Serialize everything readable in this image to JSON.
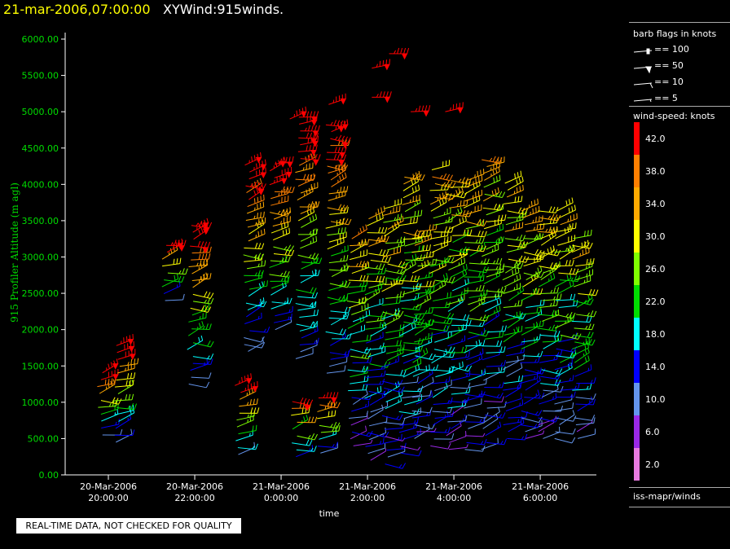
{
  "header": {
    "time": "21-mar-2006,07:00:00",
    "title": "XYWind:915winds."
  },
  "quality_note": "REAL-TIME DATA, NOT CHECKED FOR QUALITY",
  "legend": {
    "barb_title": "barb flags in knots",
    "barbs": [
      "== 100",
      "== 50",
      "== 10",
      "== 5"
    ],
    "speed_title": "wind-speed: knots",
    "speed_bins": [
      {
        "label": "42.0",
        "color": "#ff0000"
      },
      {
        "label": "38.0",
        "color": "#ff7f00"
      },
      {
        "label": "34.0",
        "color": "#ffaa00"
      },
      {
        "label": "30.0",
        "color": "#ffff00"
      },
      {
        "label": "26.0",
        "color": "#7fff00"
      },
      {
        "label": "22.0",
        "color": "#00dd00"
      },
      {
        "label": "18.0",
        "color": "#00ffff"
      },
      {
        "label": "14.0",
        "color": "#0000ff"
      },
      {
        "label": "10.0",
        "color": "#6495ed"
      },
      {
        "label": "6.0",
        "color": "#9a28e6"
      },
      {
        "label": "2.0",
        "color": "#e87ae0"
      }
    ],
    "source": "iss-mapr/winds"
  },
  "chart_data": {
    "type": "scatter",
    "title": "XYWind:915winds.",
    "xlabel": "time",
    "ylabel": "915 Profiler Altitude (m agl)",
    "xlim_hours": [
      -5.0,
      7.3
    ],
    "ylim": [
      0,
      6200
    ],
    "x_ticks": [
      {
        "h": -4,
        "date": "20-Mar-2006",
        "time": "20:00:00"
      },
      {
        "h": -2,
        "date": "20-Mar-2006",
        "time": "22:00:00"
      },
      {
        "h": 0,
        "date": "21-Mar-2006",
        "time": "0:00:00"
      },
      {
        "h": 2,
        "date": "21-Mar-2006",
        "time": "2:00:00"
      },
      {
        "h": 4,
        "date": "21-Mar-2006",
        "time": "4:00:00"
      },
      {
        "h": 6,
        "date": "21-Mar-2006",
        "time": "6:00:00"
      }
    ],
    "y_ticks": [
      "0.00",
      "500.00",
      "1000.00",
      "1500.00",
      "2000.00",
      "2500.00",
      "3000.00",
      "3500.00",
      "4000.00",
      "4500.00",
      "5000.00",
      "5500.00",
      "6000.00"
    ],
    "columns": [
      {
        "h": -4.2,
        "z0": 550,
        "z1": 1450
      },
      {
        "h": -3.8,
        "z0": 450,
        "z1": 1800
      },
      {
        "h": -2.7,
        "z0": 2400,
        "z1": 3200
      },
      {
        "h": -2.1,
        "z0": 1250,
        "z1": 3450
      },
      {
        "h": -1.0,
        "z0": 280,
        "z1": 1250
      },
      {
        "h": -0.8,
        "z0": 1700,
        "z1": 4300
      },
      {
        "h": -0.2,
        "z0": 2000,
        "z1": 4300
      },
      {
        "h": 0.3,
        "z0": 250,
        "z1": 1100
      },
      {
        "h": 0.4,
        "z0": 1600,
        "z1": 4950
      },
      {
        "h": 0.9,
        "z0": 300,
        "z1": 1100
      },
      {
        "h": 1.1,
        "z0": 1400,
        "z1": 4900
      },
      {
        "h": 1.6,
        "z0": 400,
        "z1": 3300
      },
      {
        "h": 2.0,
        "z0": 200,
        "z1": 3600
      },
      {
        "h": 2.4,
        "z0": 150,
        "z1": 3700
      },
      {
        "h": 2.8,
        "z0": 300,
        "z1": 4100
      },
      {
        "h": 3.1,
        "z0": 500,
        "z1": 3400
      },
      {
        "h": 3.5,
        "z0": 400,
        "z1": 4200
      },
      {
        "h": 3.9,
        "z0": 350,
        "z1": 4100
      },
      {
        "h": 4.3,
        "z0": 350,
        "z1": 4100
      },
      {
        "h": 4.7,
        "z0": 350,
        "z1": 4400
      },
      {
        "h": 5.2,
        "z0": 500,
        "z1": 4100
      },
      {
        "h": 5.6,
        "z0": 500,
        "z1": 3700
      },
      {
        "h": 6.0,
        "z0": 500,
        "z1": 3700
      },
      {
        "h": 6.4,
        "z0": 500,
        "z1": 3700
      },
      {
        "h": 6.8,
        "z0": 500,
        "z1": 3300
      }
    ],
    "upper_barbs": [
      {
        "h": 2.1,
        "z": 5600
      },
      {
        "h": 2.1,
        "z": 5200
      },
      {
        "h": 2.5,
        "z": 5800
      },
      {
        "h": 1.1,
        "z": 5100
      },
      {
        "h": 0.2,
        "z": 4900
      },
      {
        "h": 3.0,
        "z": 5000
      },
      {
        "h": 3.8,
        "z": 5000
      }
    ]
  }
}
